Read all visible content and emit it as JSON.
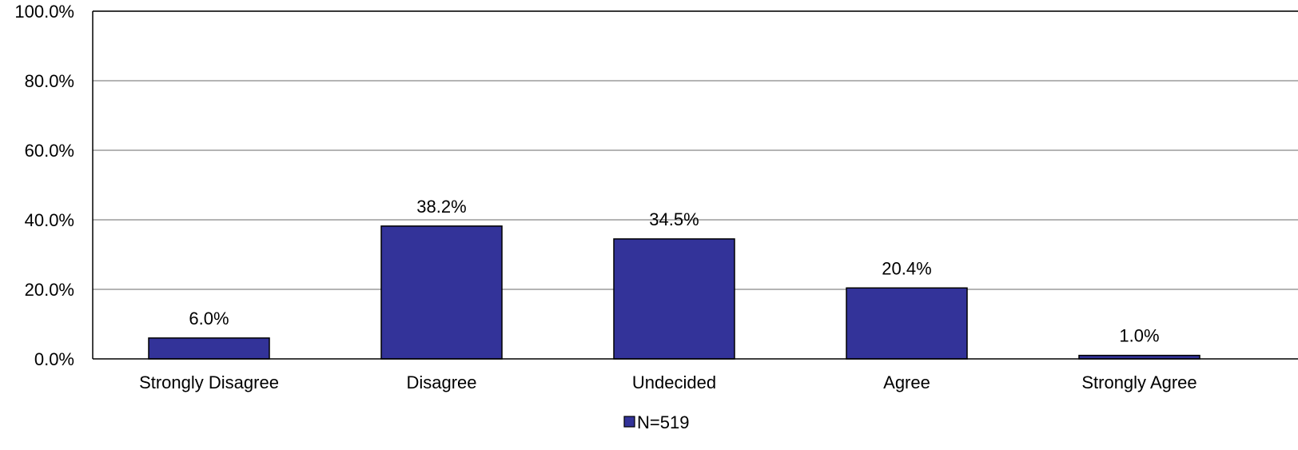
{
  "chart_data": {
    "type": "bar",
    "categories": [
      "Strongly Disagree",
      "Disagree",
      "Undecided",
      "Agree",
      "Strongly Agree"
    ],
    "series": [
      {
        "name": "N=519",
        "values": [
          6.0,
          38.2,
          34.5,
          20.4,
          1.0
        ],
        "labels": [
          "6.0%",
          "38.2%",
          "34.5%",
          "20.4%",
          "1.0%"
        ],
        "color": "#333399"
      }
    ],
    "ylim": [
      0,
      100
    ],
    "yticks": [
      0,
      20,
      40,
      60,
      80,
      100
    ],
    "ytick_labels": [
      "0.0%",
      "20.0%",
      "40.0%",
      "60.0%",
      "80.0%",
      "100.0%"
    ],
    "grid": true,
    "legend_position": "bottom-center",
    "title": "",
    "xlabel": "",
    "ylabel": ""
  }
}
